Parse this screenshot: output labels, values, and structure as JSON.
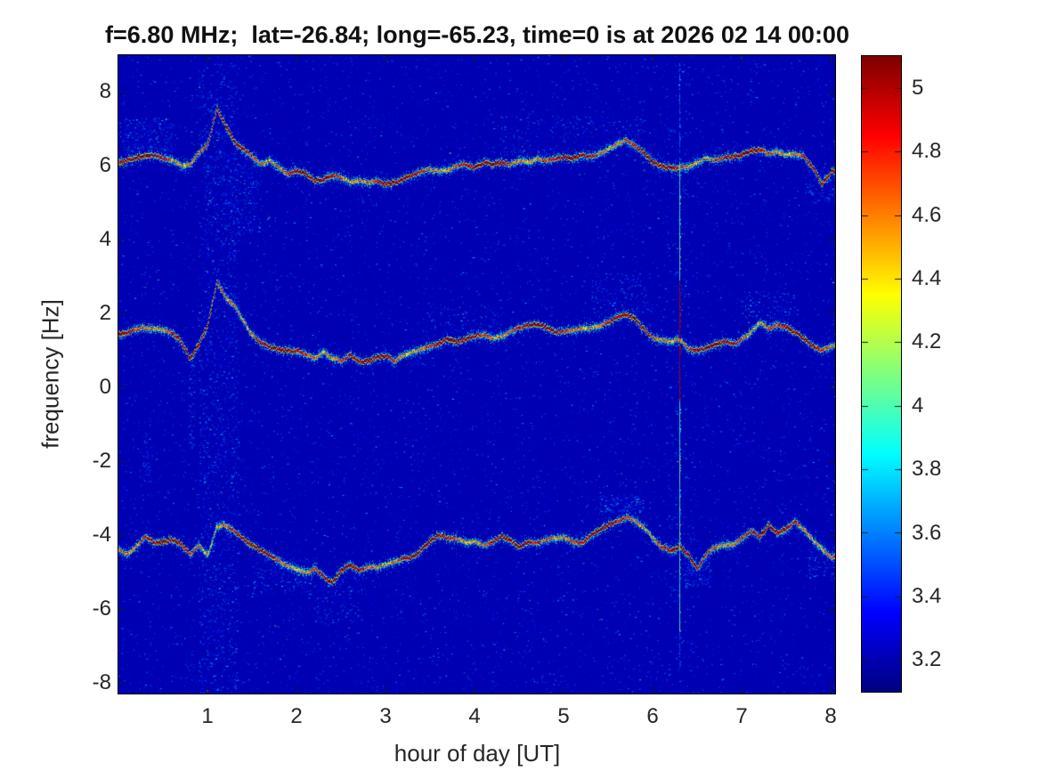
{
  "chart_data": {
    "type": "heatmap",
    "subtype": "doppler-spectrogram",
    "title": "f=6.80 MHz;  lat=-26.84; long=-65.23, time=0 is at 2026 02 14 00:00",
    "xlabel": "hour of day [UT]",
    "ylabel": "frequency [Hz]",
    "xlim": [
      0,
      8.05
    ],
    "ylim": [
      -8.3,
      9.0
    ],
    "x_ticks": [
      1,
      2,
      3,
      4,
      5,
      6,
      7,
      8
    ],
    "y_ticks": [
      8,
      6,
      4,
      2,
      0,
      -2,
      -4,
      -6,
      -8
    ],
    "grid": false,
    "legend": "none",
    "colorbar": {
      "colormap": "jet",
      "clim": [
        3.1,
        5.1
      ],
      "ticks": [
        5,
        4.8,
        4.6,
        4.4,
        4.2,
        4,
        3.8,
        3.6,
        3.4,
        3.2
      ],
      "position": "right"
    },
    "background_level": 3.2,
    "traces": [
      {
        "name": "upper-doppler-trace",
        "x_start": 0,
        "x_step": 0.1,
        "f": [
          6.1,
          6.15,
          6.22,
          6.3,
          6.28,
          6.2,
          6.15,
          6.0,
          6.05,
          6.35,
          6.6,
          7.55,
          7.1,
          6.65,
          6.45,
          6.25,
          6.05,
          6.15,
          5.95,
          5.8,
          5.85,
          5.8,
          5.6,
          5.65,
          5.75,
          5.7,
          5.55,
          5.6,
          5.55,
          5.6,
          5.5,
          5.55,
          5.65,
          5.75,
          5.85,
          5.9,
          5.85,
          5.9,
          6.0,
          6.05,
          5.95,
          6.1,
          6.05,
          6.1,
          6.05,
          6.15,
          6.1,
          6.2,
          6.15,
          6.2,
          6.25,
          6.2,
          6.3,
          6.25,
          6.35,
          6.45,
          6.6,
          6.7,
          6.55,
          6.35,
          6.1,
          6.0,
          5.95,
          5.95,
          6.0,
          6.1,
          6.2,
          6.15,
          6.25,
          6.25,
          6.3,
          6.4,
          6.45,
          6.35,
          6.4,
          6.3,
          6.35,
          6.25,
          5.95,
          5.5,
          5.85
        ]
      },
      {
        "name": "middle-doppler-trace",
        "x_start": 0,
        "x_step": 0.1,
        "f": [
          1.45,
          1.5,
          1.58,
          1.62,
          1.6,
          1.55,
          1.48,
          1.25,
          0.78,
          1.15,
          1.7,
          2.85,
          2.45,
          2.2,
          1.8,
          1.4,
          1.2,
          1.1,
          1.02,
          1.0,
          1.0,
          0.88,
          0.8,
          0.95,
          0.8,
          0.72,
          0.88,
          0.72,
          0.7,
          0.82,
          0.85,
          0.72,
          0.88,
          0.95,
          1.05,
          1.12,
          1.2,
          1.32,
          1.22,
          1.32,
          1.4,
          1.42,
          1.32,
          1.38,
          1.52,
          1.62,
          1.68,
          1.72,
          1.62,
          1.5,
          1.52,
          1.55,
          1.6,
          1.62,
          1.68,
          1.78,
          1.9,
          1.98,
          1.85,
          1.55,
          1.35,
          1.28,
          1.25,
          1.32,
          1.05,
          1.0,
          1.08,
          1.15,
          1.25,
          1.18,
          1.3,
          1.5,
          1.75,
          1.6,
          1.68,
          1.62,
          1.48,
          1.32,
          1.12,
          1.0,
          1.12
        ]
      },
      {
        "name": "lower-doppler-trace",
        "x_start": 0,
        "x_step": 0.1,
        "f": [
          -4.4,
          -4.52,
          -4.3,
          -4.05,
          -4.22,
          -4.18,
          -4.12,
          -4.25,
          -4.5,
          -4.3,
          -4.55,
          -3.78,
          -3.72,
          -3.92,
          -4.1,
          -4.28,
          -4.42,
          -4.58,
          -4.7,
          -4.85,
          -4.92,
          -5.02,
          -4.92,
          -5.12,
          -5.3,
          -4.95,
          -4.82,
          -4.95,
          -4.85,
          -4.88,
          -4.8,
          -4.72,
          -4.65,
          -4.58,
          -4.4,
          -4.15,
          -4.0,
          -4.08,
          -4.12,
          -4.18,
          -4.18,
          -4.28,
          -4.18,
          -4.02,
          -4.15,
          -4.32,
          -4.18,
          -4.22,
          -4.12,
          -4.08,
          -4.06,
          -4.18,
          -4.22,
          -4.0,
          -3.85,
          -3.72,
          -3.62,
          -3.52,
          -3.62,
          -3.8,
          -4.1,
          -4.32,
          -4.42,
          -4.32,
          -4.55,
          -4.9,
          -4.52,
          -4.32,
          -4.28,
          -4.25,
          -4.08,
          -3.88,
          -4.05,
          -3.72,
          -3.95,
          -3.82,
          -3.62,
          -3.88,
          -4.15,
          -4.38,
          -4.6
        ]
      }
    ],
    "events": {
      "disturbance_column": {
        "hour_start": 0.9,
        "hour_end": 1.35,
        "description_level": 3.6
      },
      "vertical_streak": {
        "hour": 6.3,
        "f_top": 8.8,
        "f_bottom": -7.6,
        "strong_from": 2.9,
        "strong_to": -0.35,
        "strong_level": 4.9
      }
    },
    "scatter_clouds": [
      {
        "h0": 0.05,
        "h1": 0.6,
        "f0": 6.4,
        "f1": 7.3,
        "n": 260
      },
      {
        "h0": 0.9,
        "h1": 1.35,
        "f0": -8.8,
        "f1": 8.8,
        "n": 2300
      },
      {
        "h0": 1.15,
        "h1": 1.6,
        "f0": 4.2,
        "f1": 6.4,
        "n": 320
      },
      {
        "h0": 1.5,
        "h1": 2.2,
        "f0": -5.6,
        "f1": -4.6,
        "n": 240
      },
      {
        "h0": 2.2,
        "h1": 2.75,
        "f0": -6.4,
        "f1": -5.0,
        "n": 190
      },
      {
        "h0": 0.78,
        "h1": 0.86,
        "f0": -1.6,
        "f1": 0.7,
        "n": 90
      },
      {
        "h0": 4.3,
        "h1": 5.9,
        "f0": 6.3,
        "f1": 7.4,
        "n": 300
      },
      {
        "h0": 5.3,
        "h1": 6.0,
        "f0": 2.0,
        "f1": 3.1,
        "n": 220
      },
      {
        "h0": 5.4,
        "h1": 5.9,
        "f0": -3.4,
        "f1": -2.9,
        "n": 210
      },
      {
        "h0": 6.35,
        "h1": 6.65,
        "f0": -5.4,
        "f1": -4.6,
        "n": 150
      },
      {
        "h0": 7.0,
        "h1": 7.6,
        "f0": 1.9,
        "f1": 2.6,
        "n": 140
      },
      {
        "h0": 7.75,
        "h1": 8.05,
        "f0": -5.2,
        "f1": -4.3,
        "n": 130
      },
      {
        "h0": 7.7,
        "h1": 8.05,
        "f0": 5.0,
        "f1": 5.9,
        "n": 130
      },
      {
        "h0": 0.28,
        "h1": 0.38,
        "f0": -2.6,
        "f1": -1.2,
        "n": 60
      },
      {
        "h0": 6.15,
        "h1": 6.45,
        "f0": -8.5,
        "f1": 8.8,
        "n": 420
      },
      {
        "h0": 3.4,
        "h1": 4.3,
        "f0": 1.5,
        "f1": 2.2,
        "n": 110
      }
    ]
  }
}
